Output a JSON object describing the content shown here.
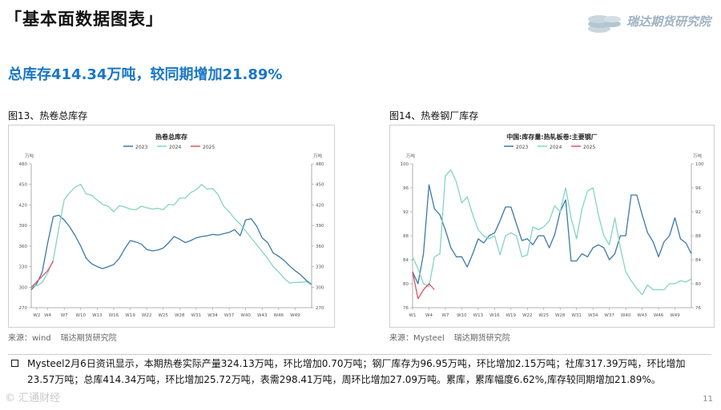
{
  "page": {
    "title": "「基本面数据图表」",
    "headline": "总库存414.34万吨，较同期增加21.89%",
    "page_number": "11",
    "watermark": "© 汇通财经"
  },
  "logo": {
    "text": "瑞达期货研究院",
    "icon": "coin-stack-icon",
    "color": "#9fb3c2"
  },
  "figures": [
    {
      "caption": "图13、热卷总库存",
      "source_label": "来源：wind",
      "source_org": "瑞达期货研究院"
    },
    {
      "caption": "图14、热卷钢厂库存",
      "source_label": "来源：Mysteel",
      "source_org": "瑞达期货研究院"
    }
  ],
  "body": {
    "text": "Mysteel2月6日资讯显示，本期热卷实际产量324.13万吨，环比增加0.70万吨；钢厂库存为96.95万吨，环比增加2.15万吨；社库317.39万吨，环比增加23.57万吨；总库414.34万吨，环比增加25.72万吨，表需298.41万吨，周环比增加27.09万吨。累库，累库幅度6.62%,库存较同期增加21.89%。"
  },
  "colors": {
    "s2023": "#3d78a8",
    "s2024": "#84d4c4",
    "s2025": "#e0535f"
  },
  "chart_data": [
    {
      "type": "line",
      "title": "热卷总库存",
      "ylabel_left": "万吨",
      "ylabel_right": "万吨",
      "ylim": [
        270,
        480
      ],
      "yticks": [
        270,
        300,
        330,
        360,
        390,
        420,
        450,
        480
      ],
      "xlim": [
        1,
        52
      ],
      "xtick_labels": [
        "W2",
        "W4",
        "W7",
        "W10",
        "W13",
        "W16",
        "W19",
        "W22",
        "W25",
        "W28",
        "W31",
        "W34",
        "W37",
        "W40",
        "W43",
        "W46",
        "W49"
      ],
      "legend": "top-center",
      "grid": false,
      "series": [
        {
          "name": "2023",
          "x": [
            1,
            2,
            3,
            4,
            5,
            6,
            7,
            8,
            9,
            10,
            11,
            12,
            13,
            14,
            15,
            16,
            17,
            18,
            19,
            20,
            21,
            22,
            23,
            24,
            25,
            26,
            27,
            28,
            29,
            30,
            31,
            32,
            33,
            34,
            35,
            36,
            37,
            38,
            39,
            40,
            41,
            42,
            43,
            44,
            45,
            46,
            47,
            48,
            49,
            50,
            51,
            52
          ],
          "y": [
            296,
            305,
            322,
            365,
            403,
            405,
            398,
            388,
            375,
            360,
            342,
            334,
            330,
            327,
            330,
            333,
            342,
            356,
            368,
            366,
            363,
            355,
            353,
            354,
            357,
            365,
            374,
            370,
            365,
            368,
            372,
            374,
            375,
            377,
            376,
            378,
            380,
            384,
            375,
            398,
            400,
            389,
            372,
            365,
            350,
            345,
            339,
            331,
            324,
            318,
            310,
            304
          ]
        },
        {
          "name": "2024",
          "x": [
            1,
            2,
            3,
            4,
            5,
            6,
            7,
            8,
            9,
            10,
            11,
            12,
            13,
            14,
            15,
            16,
            17,
            18,
            19,
            20,
            21,
            22,
            23,
            24,
            25,
            26,
            27,
            28,
            29,
            30,
            31,
            32,
            33,
            34,
            35,
            36,
            37,
            38,
            39,
            40,
            41,
            42,
            43,
            44,
            45,
            46,
            47,
            48,
            49,
            50,
            51,
            52
          ],
          "y": [
            302,
            302,
            307,
            321,
            340,
            385,
            428,
            438,
            446,
            450,
            436,
            434,
            427,
            421,
            418,
            410,
            419,
            417,
            414,
            413,
            418,
            416,
            414,
            415,
            413,
            421,
            420,
            430,
            430,
            438,
            442,
            450,
            443,
            444,
            435,
            418,
            410,
            400,
            392,
            382,
            372,
            362,
            352,
            342,
            330,
            322,
            313,
            306,
            307,
            307,
            308,
            303
          ]
        },
        {
          "name": "2025",
          "x": [
            1,
            2,
            3,
            4,
            5
          ],
          "y": [
            299,
            308,
            316,
            324,
            338
          ]
        }
      ]
    },
    {
      "type": "line",
      "title": "中国:库存量:热轧板卷:主要钢厂",
      "ylabel_left": "万吨",
      "ylabel_right": "万吨",
      "ylim": [
        76,
        100
      ],
      "yticks": [
        76,
        80,
        84,
        88,
        92,
        96,
        100
      ],
      "xlim": [
        1,
        52
      ],
      "xtick_labels": [
        "W1",
        "W4",
        "W7",
        "W10",
        "W13",
        "W16",
        "W19",
        "W22",
        "W25",
        "W28",
        "W31",
        "W34",
        "W37",
        "W40",
        "W43",
        "W46",
        "W49"
      ],
      "legend": "top-center",
      "grid": false,
      "series": [
        {
          "name": "2023",
          "x": [
            1,
            2,
            3,
            4,
            5,
            6,
            7,
            8,
            9,
            10,
            11,
            12,
            13,
            14,
            15,
            16,
            17,
            18,
            19,
            20,
            21,
            22,
            23,
            24,
            25,
            26,
            27,
            28,
            29,
            30,
            31,
            32,
            33,
            34,
            35,
            36,
            37,
            38,
            39,
            40,
            41,
            42,
            43,
            44,
            45,
            46,
            47,
            48,
            49,
            50,
            51,
            52
          ],
          "y": [
            82,
            80,
            85,
            96.5,
            92.5,
            91.5,
            89,
            86,
            84.5,
            84.5,
            82.8,
            85,
            87.5,
            86.8,
            88,
            88.5,
            90.5,
            92.8,
            92.8,
            90,
            87.2,
            87.5,
            86.5,
            88,
            88,
            86,
            88.2,
            92,
            94,
            83.8,
            83.8,
            85,
            84.5,
            86,
            86.5,
            86,
            84,
            85,
            88,
            88,
            94.8,
            94.8,
            91.5,
            88.5,
            87,
            84.5,
            87,
            88,
            91,
            87.5,
            86.8,
            85
          ]
        },
        {
          "name": "2024",
          "x": [
            1,
            2,
            3,
            4,
            5,
            6,
            7,
            8,
            9,
            10,
            11,
            12,
            13,
            14,
            15,
            16,
            17,
            18,
            19,
            20,
            21,
            22,
            23,
            24,
            25,
            26,
            27,
            28,
            29,
            30,
            31,
            32,
            33,
            34,
            35,
            36,
            37,
            38,
            39,
            40,
            41,
            42,
            43,
            44,
            45,
            46,
            47,
            48,
            49,
            50,
            51,
            52
          ],
          "y": [
            84.5,
            82.5,
            80,
            79.5,
            84.5,
            85,
            98,
            99,
            97,
            93.5,
            94.5,
            91.5,
            89,
            88,
            87.5,
            88,
            84.8,
            88,
            88.5,
            88,
            84.5,
            84.8,
            89.5,
            89,
            89.5,
            90.5,
            93,
            92,
            96,
            91,
            87.5,
            92.5,
            95.5,
            96,
            91.5,
            88,
            86.5,
            91,
            86,
            82,
            80.5,
            79.2,
            78.2,
            79.8,
            79,
            79,
            79,
            80,
            80,
            80.5,
            80.3,
            80.8
          ]
        },
        {
          "name": "2025",
          "x": [
            1,
            2,
            3,
            4,
            5
          ],
          "y": [
            82,
            77.5,
            79,
            80,
            79
          ]
        }
      ]
    }
  ]
}
